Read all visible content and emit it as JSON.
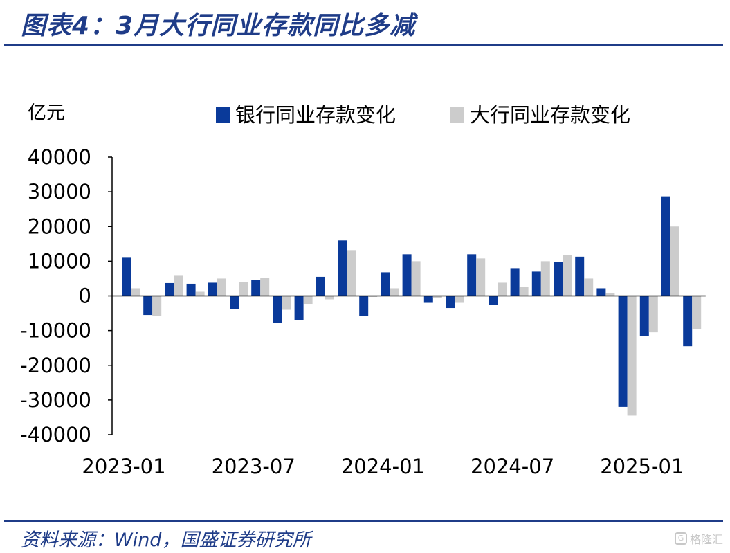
{
  "header": {
    "title": "图表4：3月大行同业存款同比多减"
  },
  "footer": {
    "source": "资料来源：Wind，国盛证券研究所",
    "watermark": "格隆汇",
    "watermark_icon": "G"
  },
  "chart_data": {
    "type": "bar",
    "title": "",
    "ylabel": "亿元",
    "xlabel": "",
    "ylim": [
      -40000,
      40000
    ],
    "yticks": [
      40000,
      30000,
      20000,
      10000,
      0,
      -10000,
      -20000,
      -30000,
      -40000
    ],
    "ytick_labels": [
      "40000",
      "30000",
      "20000",
      "10000",
      "0",
      "-10000",
      "-20000",
      "-30000",
      "-40000"
    ],
    "categories": [
      "2023-01",
      "2023-02",
      "2023-03",
      "2023-04",
      "2023-05",
      "2023-06",
      "2023-07",
      "2023-08",
      "2023-09",
      "2023-10",
      "2023-11",
      "2023-12",
      "2024-01",
      "2024-02",
      "2024-03",
      "2024-04",
      "2024-05",
      "2024-06",
      "2024-07",
      "2024-08",
      "2024-09",
      "2024-10",
      "2024-11",
      "2024-12",
      "2025-01",
      "2025-02",
      "2025-03"
    ],
    "xtick_labels": [
      "2023-01",
      "2023-07",
      "2024-01",
      "2024-07",
      "2025-01"
    ],
    "xtick_categories": [
      "2023-01",
      "2023-07",
      "2024-01",
      "2024-07",
      "2025-01"
    ],
    "grid": false,
    "legend_position": "top",
    "series": [
      {
        "name": "银行同业存款变化",
        "color": "#0a3a9a",
        "values": [
          11000,
          -5500,
          3700,
          3500,
          3800,
          -3700,
          4500,
          -7700,
          -7000,
          5500,
          16000,
          -5700,
          6800,
          12000,
          -2000,
          -3500,
          12000,
          -2500,
          8000,
          7000,
          9700,
          11300,
          2200,
          -32000,
          -11500,
          28700,
          -14500
        ]
      },
      {
        "name": "大行同业存款变化",
        "color": "#cccccc",
        "values": [
          2200,
          -5800,
          5800,
          1200,
          5000,
          4000,
          5200,
          -4000,
          -2300,
          -1000,
          13200,
          -300,
          2200,
          10000,
          -600,
          -2000,
          10800,
          3800,
          2500,
          10000,
          11800,
          5000,
          700,
          -34500,
          -10500,
          20000,
          -9500
        ]
      }
    ]
  }
}
